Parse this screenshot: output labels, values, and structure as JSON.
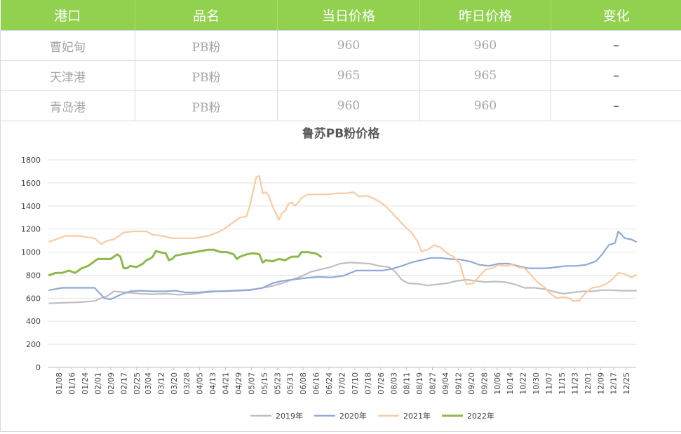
{
  "table": {
    "headers": [
      "港口",
      "品名",
      "当日价格",
      "昨日价格",
      "变化"
    ],
    "rows": [
      {
        "port": "曹妃甸",
        "product": "PB粉",
        "today": "960",
        "yesterday": "960",
        "change": "–"
      },
      {
        "port": "天津港",
        "product": "PB粉",
        "today": "965",
        "yesterday": "965",
        "change": "–"
      },
      {
        "port": "青岛港",
        "product": "PB粉",
        "today": "960",
        "yesterday": "960",
        "change": "–"
      }
    ],
    "header_color": "#92d050"
  },
  "chart_data": {
    "type": "line",
    "title": "鲁苏PB粉价格",
    "xlabel": "",
    "ylabel": "",
    "ylim": [
      0,
      1800
    ],
    "yticks": [
      0,
      200,
      400,
      600,
      800,
      1000,
      1200,
      1400,
      1600,
      1800
    ],
    "day_range": [
      1,
      365
    ],
    "xticks": [
      {
        "day": 8,
        "label": "01/08"
      },
      {
        "day": 16,
        "label": "01/16"
      },
      {
        "day": 24,
        "label": "01/24"
      },
      {
        "day": 32,
        "label": "02/01"
      },
      {
        "day": 40,
        "label": "02/09"
      },
      {
        "day": 48,
        "label": "02/17"
      },
      {
        "day": 56,
        "label": "02/25"
      },
      {
        "day": 63,
        "label": "03/04"
      },
      {
        "day": 71,
        "label": "03/12"
      },
      {
        "day": 79,
        "label": "03/20"
      },
      {
        "day": 87,
        "label": "03/28"
      },
      {
        "day": 95,
        "label": "04/05"
      },
      {
        "day": 103,
        "label": "04/13"
      },
      {
        "day": 111,
        "label": "04/21"
      },
      {
        "day": 119,
        "label": "04/29"
      },
      {
        "day": 127,
        "label": "05/07"
      },
      {
        "day": 135,
        "label": "05/15"
      },
      {
        "day": 143,
        "label": "05/23"
      },
      {
        "day": 151,
        "label": "05/31"
      },
      {
        "day": 159,
        "label": "06/08"
      },
      {
        "day": 167,
        "label": "06/16"
      },
      {
        "day": 175,
        "label": "06/24"
      },
      {
        "day": 183,
        "label": "07/02"
      },
      {
        "day": 191,
        "label": "07/10"
      },
      {
        "day": 199,
        "label": "07/18"
      },
      {
        "day": 207,
        "label": "07/26"
      },
      {
        "day": 215,
        "label": "08/03"
      },
      {
        "day": 223,
        "label": "08/11"
      },
      {
        "day": 231,
        "label": "08/19"
      },
      {
        "day": 239,
        "label": "08/27"
      },
      {
        "day": 247,
        "label": "09/04"
      },
      {
        "day": 255,
        "label": "09/12"
      },
      {
        "day": 263,
        "label": "09/20"
      },
      {
        "day": 271,
        "label": "09/28"
      },
      {
        "day": 279,
        "label": "10/06"
      },
      {
        "day": 287,
        "label": "10/14"
      },
      {
        "day": 295,
        "label": "10/22"
      },
      {
        "day": 303,
        "label": "10/30"
      },
      {
        "day": 311,
        "label": "11/07"
      },
      {
        "day": 319,
        "label": "11/15"
      },
      {
        "day": 327,
        "label": "11/23"
      },
      {
        "day": 335,
        "label": "12/01"
      },
      {
        "day": 343,
        "label": "12/09"
      },
      {
        "day": 351,
        "label": "12/17"
      },
      {
        "day": 359,
        "label": "12/25"
      }
    ],
    "grid": true,
    "legend_position": "bottom",
    "series": [
      {
        "name": "2019年",
        "color": "#bfbfbf",
        "points": [
          [
            2,
            555
          ],
          [
            10,
            560
          ],
          [
            20,
            565
          ],
          [
            30,
            575
          ],
          [
            34,
            600
          ],
          [
            38,
            620
          ],
          [
            42,
            660
          ],
          [
            50,
            650
          ],
          [
            58,
            640
          ],
          [
            66,
            635
          ],
          [
            74,
            640
          ],
          [
            82,
            630
          ],
          [
            90,
            635
          ],
          [
            98,
            650
          ],
          [
            106,
            660
          ],
          [
            114,
            665
          ],
          [
            122,
            670
          ],
          [
            130,
            680
          ],
          [
            138,
            700
          ],
          [
            146,
            730
          ],
          [
            152,
            760
          ],
          [
            158,
            790
          ],
          [
            164,
            830
          ],
          [
            170,
            850
          ],
          [
            176,
            870
          ],
          [
            182,
            900
          ],
          [
            188,
            910
          ],
          [
            194,
            905
          ],
          [
            200,
            900
          ],
          [
            206,
            880
          ],
          [
            212,
            870
          ],
          [
            216,
            830
          ],
          [
            220,
            760
          ],
          [
            224,
            730
          ],
          [
            230,
            725
          ],
          [
            236,
            710
          ],
          [
            242,
            720
          ],
          [
            248,
            730
          ],
          [
            254,
            750
          ],
          [
            260,
            760
          ],
          [
            266,
            750
          ],
          [
            272,
            740
          ],
          [
            278,
            745
          ],
          [
            284,
            740
          ],
          [
            290,
            720
          ],
          [
            296,
            690
          ],
          [
            302,
            690
          ],
          [
            308,
            680
          ],
          [
            312,
            665
          ],
          [
            316,
            650
          ],
          [
            320,
            640
          ],
          [
            326,
            650
          ],
          [
            332,
            660
          ],
          [
            338,
            660
          ],
          [
            344,
            670
          ],
          [
            350,
            670
          ],
          [
            356,
            665
          ],
          [
            365,
            665
          ]
        ]
      },
      {
        "name": "2020年",
        "color": "#8eaad8",
        "points": [
          [
            2,
            670
          ],
          [
            10,
            690
          ],
          [
            20,
            690
          ],
          [
            30,
            690
          ],
          [
            36,
            600
          ],
          [
            40,
            590
          ],
          [
            46,
            630
          ],
          [
            52,
            660
          ],
          [
            58,
            665
          ],
          [
            66,
            660
          ],
          [
            74,
            660
          ],
          [
            80,
            665
          ],
          [
            86,
            650
          ],
          [
            94,
            650
          ],
          [
            102,
            660
          ],
          [
            110,
            660
          ],
          [
            118,
            665
          ],
          [
            126,
            670
          ],
          [
            134,
            690
          ],
          [
            140,
            730
          ],
          [
            146,
            750
          ],
          [
            152,
            760
          ],
          [
            160,
            775
          ],
          [
            168,
            785
          ],
          [
            176,
            780
          ],
          [
            184,
            795
          ],
          [
            192,
            840
          ],
          [
            200,
            840
          ],
          [
            208,
            840
          ],
          [
            214,
            855
          ],
          [
            220,
            880
          ],
          [
            226,
            910
          ],
          [
            232,
            930
          ],
          [
            238,
            950
          ],
          [
            244,
            950
          ],
          [
            250,
            940
          ],
          [
            256,
            935
          ],
          [
            262,
            920
          ],
          [
            268,
            890
          ],
          [
            274,
            880
          ],
          [
            280,
            900
          ],
          [
            286,
            900
          ],
          [
            292,
            880
          ],
          [
            298,
            860
          ],
          [
            304,
            860
          ],
          [
            310,
            860
          ],
          [
            316,
            870
          ],
          [
            322,
            880
          ],
          [
            328,
            880
          ],
          [
            334,
            890
          ],
          [
            340,
            920
          ],
          [
            344,
            980
          ],
          [
            348,
            1060
          ],
          [
            352,
            1080
          ],
          [
            354,
            1180
          ],
          [
            358,
            1120
          ],
          [
            362,
            1110
          ],
          [
            365,
            1090
          ]
        ]
      },
      {
        "name": "2021年",
        "color": "#f8cba3",
        "points": [
          [
            2,
            1090
          ],
          [
            8,
            1120
          ],
          [
            12,
            1140
          ],
          [
            20,
            1140
          ],
          [
            30,
            1120
          ],
          [
            34,
            1070
          ],
          [
            38,
            1100
          ],
          [
            42,
            1110
          ],
          [
            48,
            1170
          ],
          [
            54,
            1180
          ],
          [
            62,
            1180
          ],
          [
            66,
            1150
          ],
          [
            72,
            1140
          ],
          [
            78,
            1120
          ],
          [
            84,
            1120
          ],
          [
            92,
            1120
          ],
          [
            100,
            1140
          ],
          [
            106,
            1170
          ],
          [
            110,
            1200
          ],
          [
            116,
            1260
          ],
          [
            120,
            1300
          ],
          [
            124,
            1310
          ],
          [
            126,
            1400
          ],
          [
            128,
            1520
          ],
          [
            130,
            1650
          ],
          [
            132,
            1660
          ],
          [
            134,
            1510
          ],
          [
            136,
            1520
          ],
          [
            138,
            1480
          ],
          [
            140,
            1400
          ],
          [
            142,
            1340
          ],
          [
            144,
            1280
          ],
          [
            146,
            1340
          ],
          [
            148,
            1360
          ],
          [
            150,
            1420
          ],
          [
            152,
            1430
          ],
          [
            154,
            1400
          ],
          [
            156,
            1430
          ],
          [
            158,
            1470
          ],
          [
            162,
            1500
          ],
          [
            168,
            1500
          ],
          [
            174,
            1500
          ],
          [
            180,
            1510
          ],
          [
            186,
            1510
          ],
          [
            190,
            1520
          ],
          [
            194,
            1480
          ],
          [
            198,
            1490
          ],
          [
            202,
            1470
          ],
          [
            206,
            1440
          ],
          [
            210,
            1400
          ],
          [
            214,
            1340
          ],
          [
            218,
            1280
          ],
          [
            222,
            1220
          ],
          [
            226,
            1170
          ],
          [
            230,
            1090
          ],
          [
            232,
            1010
          ],
          [
            236,
            1020
          ],
          [
            240,
            1060
          ],
          [
            244,
            1040
          ],
          [
            248,
            990
          ],
          [
            252,
            960
          ],
          [
            256,
            900
          ],
          [
            258,
            800
          ],
          [
            260,
            720
          ],
          [
            264,
            730
          ],
          [
            268,
            790
          ],
          [
            272,
            850
          ],
          [
            276,
            860
          ],
          [
            280,
            890
          ],
          [
            284,
            880
          ],
          [
            288,
            890
          ],
          [
            292,
            870
          ],
          [
            296,
            860
          ],
          [
            300,
            800
          ],
          [
            304,
            740
          ],
          [
            308,
            700
          ],
          [
            312,
            640
          ],
          [
            316,
            600
          ],
          [
            320,
            610
          ],
          [
            324,
            600
          ],
          [
            326,
            575
          ],
          [
            330,
            580
          ],
          [
            334,
            650
          ],
          [
            338,
            690
          ],
          [
            342,
            700
          ],
          [
            346,
            720
          ],
          [
            350,
            760
          ],
          [
            354,
            820
          ],
          [
            358,
            810
          ],
          [
            362,
            780
          ],
          [
            365,
            800
          ]
        ]
      },
      {
        "name": "2022年",
        "color": "#8db94a",
        "points": [
          [
            2,
            800
          ],
          [
            6,
            820
          ],
          [
            10,
            820
          ],
          [
            14,
            840
          ],
          [
            18,
            820
          ],
          [
            22,
            860
          ],
          [
            26,
            880
          ],
          [
            28,
            900
          ],
          [
            32,
            940
          ],
          [
            36,
            940
          ],
          [
            40,
            940
          ],
          [
            44,
            980
          ],
          [
            46,
            960
          ],
          [
            48,
            860
          ],
          [
            50,
            860
          ],
          [
            52,
            880
          ],
          [
            56,
            870
          ],
          [
            60,
            900
          ],
          [
            62,
            930
          ],
          [
            64,
            940
          ],
          [
            66,
            960
          ],
          [
            68,
            1010
          ],
          [
            70,
            1000
          ],
          [
            74,
            990
          ],
          [
            76,
            930
          ],
          [
            78,
            940
          ],
          [
            80,
            970
          ],
          [
            84,
            980
          ],
          [
            88,
            990
          ],
          [
            92,
            1000
          ],
          [
            96,
            1010
          ],
          [
            100,
            1020
          ],
          [
            104,
            1020
          ],
          [
            108,
            1000
          ],
          [
            112,
            1000
          ],
          [
            116,
            980
          ],
          [
            118,
            940
          ],
          [
            120,
            960
          ],
          [
            124,
            980
          ],
          [
            128,
            990
          ],
          [
            132,
            980
          ],
          [
            134,
            910
          ],
          [
            136,
            930
          ],
          [
            140,
            920
          ],
          [
            144,
            940
          ],
          [
            148,
            930
          ],
          [
            152,
            960
          ],
          [
            156,
            960
          ],
          [
            158,
            1000
          ],
          [
            162,
            1000
          ],
          [
            166,
            990
          ],
          [
            168,
            980
          ],
          [
            170,
            960
          ]
        ]
      }
    ]
  }
}
